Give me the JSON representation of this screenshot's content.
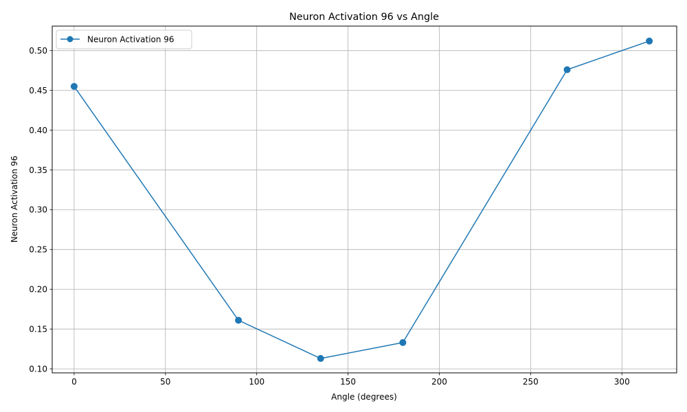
{
  "chart_data": {
    "type": "line",
    "title": "Neuron Activation 96 vs Angle",
    "xlabel": "Angle (degrees)",
    "ylabel": "Neuron Activation 96",
    "xlim": [
      -12,
      330
    ],
    "ylim": [
      0.0949,
      0.5308
    ],
    "xticks": [
      0,
      50,
      100,
      150,
      200,
      250,
      300
    ],
    "xtick_labels": [
      "0",
      "50",
      "100",
      "150",
      "200",
      "250",
      "300"
    ],
    "yticks": [
      0.1,
      0.15,
      0.2,
      0.25,
      0.3,
      0.35,
      0.4,
      0.45,
      0.5
    ],
    "ytick_labels": [
      "0.10",
      "0.15",
      "0.20",
      "0.25",
      "0.30",
      "0.35",
      "0.40",
      "0.45",
      "0.50"
    ],
    "grid": true,
    "legend_position": "top-left",
    "series": [
      {
        "name": "Neuron Activation 96",
        "color": "#1f77b4",
        "marker": "circle",
        "x": [
          0,
          90,
          135,
          180,
          270,
          315
        ],
        "y": [
          0.455,
          0.161,
          0.113,
          0.133,
          0.476,
          0.512
        ]
      }
    ]
  }
}
